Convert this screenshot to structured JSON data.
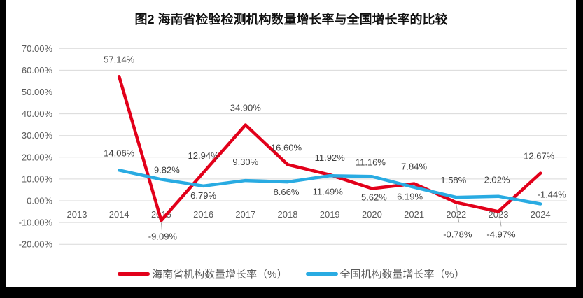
{
  "title": "图2 海南省检验检测机构数量增长率与全国增长率的比较",
  "colors": {
    "grid": "#d9d9d9",
    "axis_text": "#595959",
    "label_text": "#3f3f3f",
    "leader": "#a6a6a6",
    "background": "#ffffff",
    "frame": "#000000",
    "hainan_red": "#e2001a",
    "national_blue": "#29abe2"
  },
  "chart_data": {
    "type": "line",
    "title": "图2 海南省检验检测机构数量增长率与全国增长率的比较",
    "categories": [
      "2013",
      "2014",
      "2015",
      "2016",
      "2017",
      "2018",
      "2019",
      "2020",
      "2021",
      "2022",
      "2023",
      "2024"
    ],
    "y_axis": {
      "min": -20,
      "max": 70,
      "step": 10,
      "tick_labels": [
        "70.00%",
        "60.00%",
        "50.00%",
        "40.00%",
        "30.00%",
        "20.00%",
        "10.00%",
        "0.00%",
        "-10.00%",
        "-20.00%"
      ],
      "grid": true
    },
    "legend_position": "bottom",
    "series": [
      {
        "name": "海南省机构数量增长率（%）",
        "color": "#e2001a",
        "values": [
          null,
          57.14,
          -9.09,
          12.94,
          34.9,
          16.6,
          11.92,
          5.62,
          7.84,
          -0.78,
          -4.97,
          12.67
        ],
        "labels": [
          null,
          {
            "t": "57.14%",
            "dx": 0,
            "dy": -20
          },
          {
            "t": "-9.09%",
            "dx": 2,
            "dy": 27,
            "leader": [
              0,
              3,
              1,
              14
            ]
          },
          {
            "t": "12.94%",
            "dx": 0,
            "dy": -20
          },
          {
            "t": "34.90%",
            "dx": 0,
            "dy": -20
          },
          {
            "t": "16.60%",
            "dx": -2,
            "dy": -20
          },
          {
            "t": "11.92%",
            "dx": 0,
            "dy": -20
          },
          {
            "t": "5.62%",
            "dx": 3,
            "dy": 17
          },
          {
            "t": "7.84%",
            "dx": 0,
            "dy": -20
          },
          {
            "t": "-0.78%",
            "dx": 2,
            "dy": 50,
            "leader": [
              0,
              2,
              4,
              29
            ]
          },
          {
            "t": "-4.97%",
            "dx": 4,
            "dy": 37,
            "leader": [
              1,
              2,
              4,
              21
            ]
          },
          {
            "t": "12.67%",
            "dx": -2,
            "dy": -20
          }
        ]
      },
      {
        "name": "全国机构数量增长率（%）",
        "color": "#29abe2",
        "values": [
          null,
          14.06,
          9.82,
          6.79,
          9.3,
          8.66,
          11.49,
          11.16,
          6.19,
          1.58,
          2.02,
          -1.44
        ],
        "labels": [
          null,
          {
            "t": "14.06%",
            "dx": 0,
            "dy": -20
          },
          {
            "t": "9.82%",
            "dx": 8,
            "dy": -9
          },
          {
            "t": "6.79%",
            "dx": 0,
            "dy": 18
          },
          {
            "t": "9.30%",
            "dx": 0,
            "dy": -22
          },
          {
            "t": "8.66%",
            "dx": -2,
            "dy": 19
          },
          {
            "t": "11.49%",
            "dx": -3,
            "dy": 27
          },
          {
            "t": "11.16%",
            "dx": -2,
            "dy": -16
          },
          {
            "t": "6.19%",
            "dx": -6,
            "dy": 18
          },
          {
            "t": "1.58%",
            "dx": -4,
            "dy": -20
          },
          {
            "t": "2.02%",
            "dx": -2,
            "dy": -19
          },
          {
            "t": "-1.44%",
            "dx": 16,
            "dy": -9
          }
        ]
      }
    ]
  },
  "legend": {
    "items": [
      {
        "label": "海南省机构数量增长率（%）",
        "color": "#e2001a"
      },
      {
        "label": "全国机构数量增长率（%）",
        "color": "#29abe2"
      }
    ]
  }
}
